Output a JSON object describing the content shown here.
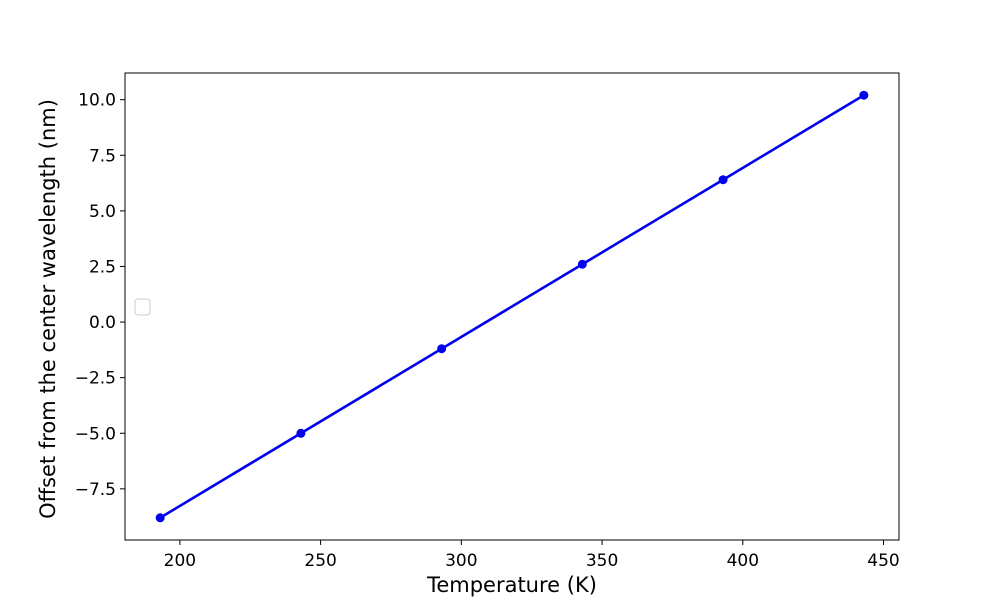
{
  "chart_data": {
    "type": "line",
    "title": "",
    "xlabel": "Temperature (K)",
    "ylabel": "Offset from the center wavelength (nm)",
    "xlim": [
      180.5,
      455.5
    ],
    "ylim": [
      -9.8,
      11.2
    ],
    "xticks": [
      200,
      250,
      300,
      350,
      400,
      450
    ],
    "xtick_labels": [
      "200",
      "250",
      "300",
      "350",
      "400",
      "450"
    ],
    "yticks": [
      -7.5,
      -5.0,
      -2.5,
      0.0,
      2.5,
      5.0,
      7.5,
      10.0
    ],
    "ytick_labels": [
      "−7.5",
      "−5.0",
      "−2.5",
      "0.0",
      "2.5",
      "5.0",
      "7.5",
      "10.0"
    ],
    "grid": false,
    "legend": {
      "placement": "center-left",
      "entries": []
    },
    "series": [
      {
        "color": "#0000ee",
        "marker": "circle",
        "x": [
          193,
          243,
          293,
          343,
          393,
          443
        ],
        "y": [
          -8.8,
          -5.0,
          -1.2,
          2.6,
          6.4,
          10.2
        ]
      }
    ]
  }
}
